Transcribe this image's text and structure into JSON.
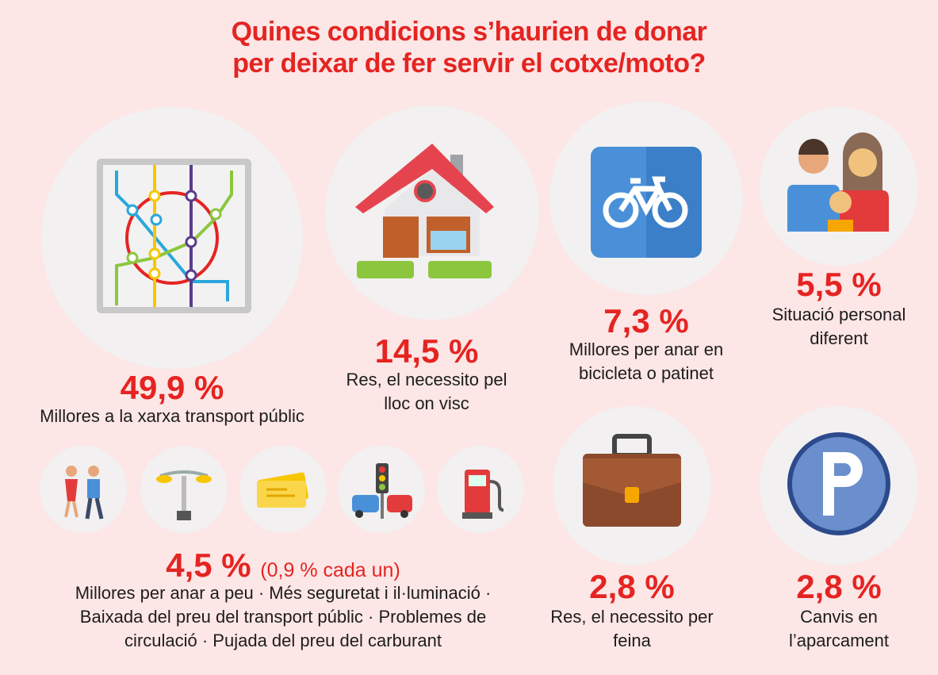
{
  "title": {
    "line1": "Quines condicions s’haurien de donar",
    "line2": "per deixar de fer servir el cotxe/moto?"
  },
  "chart_data": {
    "type": "infographic",
    "title": "Quines condicions s’haurien de donar per deixar de fer servir el cotxe/moto?",
    "unit": "%",
    "items": [
      {
        "value_label": "49,9 %",
        "value": 49.9,
        "lines": [
          "Millores a la xarxa transport públic"
        ],
        "icon": "metro-map-icon"
      },
      {
        "value_label": "14,5 %",
        "value": 14.5,
        "lines": [
          "Res, el necessito pel",
          "lloc on visc"
        ],
        "icon": "house-icon"
      },
      {
        "value_label": "7,3 %",
        "value": 7.3,
        "lines": [
          "Millores per anar en",
          "bicicleta o patinet"
        ],
        "icon": "bicycle-icon"
      },
      {
        "value_label": "5,5 %",
        "value": 5.5,
        "lines": [
          "Situació personal",
          "diferent"
        ],
        "icon": "family-icon"
      },
      {
        "value_label": "4,5 %",
        "value": 4.5,
        "note": "(0,9 % cada un)",
        "lines": [
          "Millores per anar a peu · Més seguretat i il·luminació ·",
          "Baixada del preu del transport públic · Problemes de",
          "circulació · Pujada del preu del carburant"
        ],
        "icons": [
          "pedestrians-icon",
          "street-lamp-icon",
          "ticket-icon",
          "traffic-light-icon",
          "fuel-pump-icon"
        ]
      },
      {
        "value_label": "2,8 %",
        "value": 2.8,
        "lines": [
          "Res, el necessito per",
          "feina"
        ],
        "icon": "briefcase-icon"
      },
      {
        "value_label": "2,8 %",
        "value": 2.8,
        "lines": [
          "Canvis en",
          "l’aparcament"
        ],
        "icon": "parking-icon"
      }
    ]
  },
  "colors": {
    "accent": "#e52421",
    "background": "#fce6e6",
    "circle": "#f2f0f0"
  }
}
